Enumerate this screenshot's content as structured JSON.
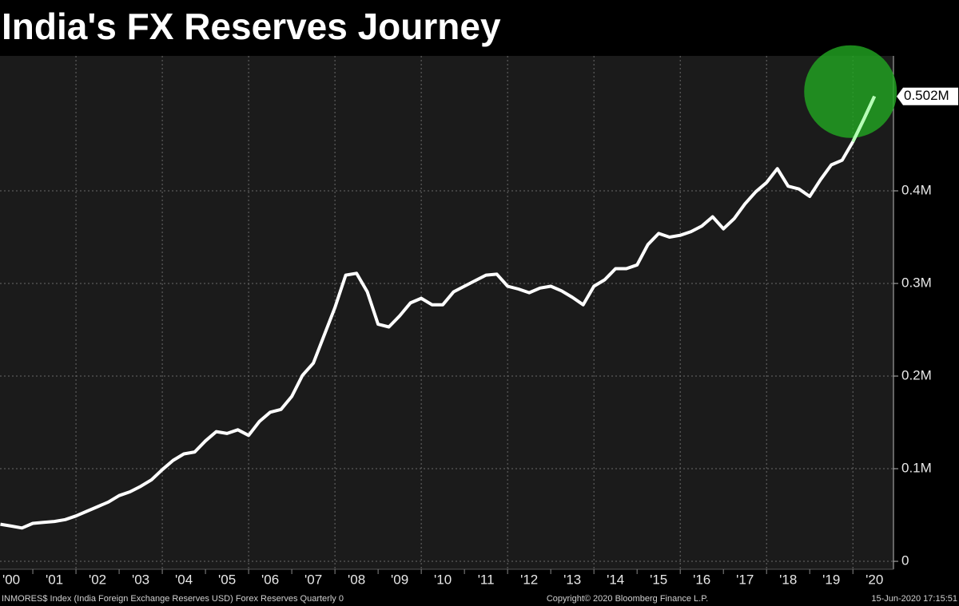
{
  "chart_data": {
    "type": "line",
    "title": "India's FX Reserves Journey",
    "x": [
      2000.25,
      2000.5,
      2000.75,
      2001,
      2001.25,
      2001.5,
      2001.75,
      2002,
      2002.25,
      2002.5,
      2002.75,
      2003,
      2003.25,
      2003.5,
      2003.75,
      2004,
      2004.25,
      2004.5,
      2004.75,
      2005,
      2005.25,
      2005.5,
      2005.75,
      2006,
      2006.25,
      2006.5,
      2006.75,
      2007,
      2007.25,
      2007.5,
      2007.75,
      2008,
      2008.25,
      2008.5,
      2008.75,
      2009,
      2009.25,
      2009.5,
      2009.75,
      2010,
      2010.25,
      2010.5,
      2010.75,
      2011,
      2011.25,
      2011.5,
      2011.75,
      2012,
      2012.25,
      2012.5,
      2012.75,
      2013,
      2013.25,
      2013.5,
      2013.75,
      2014,
      2014.25,
      2014.5,
      2014.75,
      2015,
      2015.25,
      2015.5,
      2015.75,
      2016,
      2016.25,
      2016.5,
      2016.75,
      2017,
      2017.25,
      2017.5,
      2017.75,
      2018,
      2018.25,
      2018.5,
      2018.75,
      2019,
      2019.25,
      2019.5,
      2019.75,
      2020,
      2020.25,
      2020.5
    ],
    "series": [
      {
        "name": "Forex Reserves",
        "color": "#ffffff",
        "values": [
          0.04,
          0.038,
          0.036,
          0.041,
          0.042,
          0.043,
          0.045,
          0.049,
          0.054,
          0.059,
          0.064,
          0.071,
          0.075,
          0.081,
          0.088,
          0.099,
          0.109,
          0.116,
          0.118,
          0.13,
          0.14,
          0.138,
          0.142,
          0.136,
          0.151,
          0.161,
          0.164,
          0.178,
          0.201,
          0.214,
          0.244,
          0.274,
          0.309,
          0.311,
          0.291,
          0.256,
          0.253,
          0.265,
          0.279,
          0.284,
          0.277,
          0.277,
          0.291,
          0.297,
          0.303,
          0.309,
          0.31,
          0.297,
          0.294,
          0.29,
          0.295,
          0.297,
          0.292,
          0.285,
          0.277,
          0.297,
          0.304,
          0.316,
          0.316,
          0.32,
          0.342,
          0.354,
          0.35,
          0.352,
          0.356,
          0.362,
          0.372,
          0.359,
          0.37,
          0.386,
          0.399,
          0.409,
          0.424,
          0.405,
          0.402,
          0.394,
          0.412,
          0.428,
          0.433,
          0.453,
          0.477,
          0.502
        ]
      }
    ],
    "last_value_label": "0.502M",
    "highlight_color": "#22a722",
    "highlight_line_color": "#b5ffb5",
    "xlim": [
      2000.24,
      2020.94
    ],
    "xticks": [
      {
        "value": 2000,
        "label": "'00"
      },
      {
        "value": 2001,
        "label": "'01"
      },
      {
        "value": 2002,
        "label": "'02"
      },
      {
        "value": 2003,
        "label": "'03"
      },
      {
        "value": 2004,
        "label": "'04"
      },
      {
        "value": 2005,
        "label": "'05"
      },
      {
        "value": 2006,
        "label": "'06"
      },
      {
        "value": 2007,
        "label": "'07"
      },
      {
        "value": 2008,
        "label": "'08"
      },
      {
        "value": 2009,
        "label": "'09"
      },
      {
        "value": 2010,
        "label": "'10"
      },
      {
        "value": 2011,
        "label": "'11"
      },
      {
        "value": 2012,
        "label": "'12"
      },
      {
        "value": 2013,
        "label": "'13"
      },
      {
        "value": 2014,
        "label": "'14"
      },
      {
        "value": 2015,
        "label": "'15"
      },
      {
        "value": 2016,
        "label": "'16"
      },
      {
        "value": 2017,
        "label": "'17"
      },
      {
        "value": 2018,
        "label": "'18"
      },
      {
        "value": 2019,
        "label": "'19"
      },
      {
        "value": 2020,
        "label": "'20"
      }
    ],
    "ylim": [
      -0.0086,
      0.5457
    ],
    "yticks": [
      0,
      {
        "value": 0.1,
        "label": "0.1M"
      },
      {
        "value": 0.2,
        "label": "0.2M"
      },
      {
        "value": 0.3,
        "label": "0.3M"
      },
      {
        "value": 0.4,
        "label": "0.4M"
      }
    ],
    "grid": true,
    "footer_left": "INMORES$ Index (India Foreign Exchange Reserves USD) Forex Reserves  Quarterly 0",
    "footer_center": "Copyright© 2020 Bloomberg Finance L.P.",
    "footer_right": "15-Jun-2020 17:15:51"
  }
}
